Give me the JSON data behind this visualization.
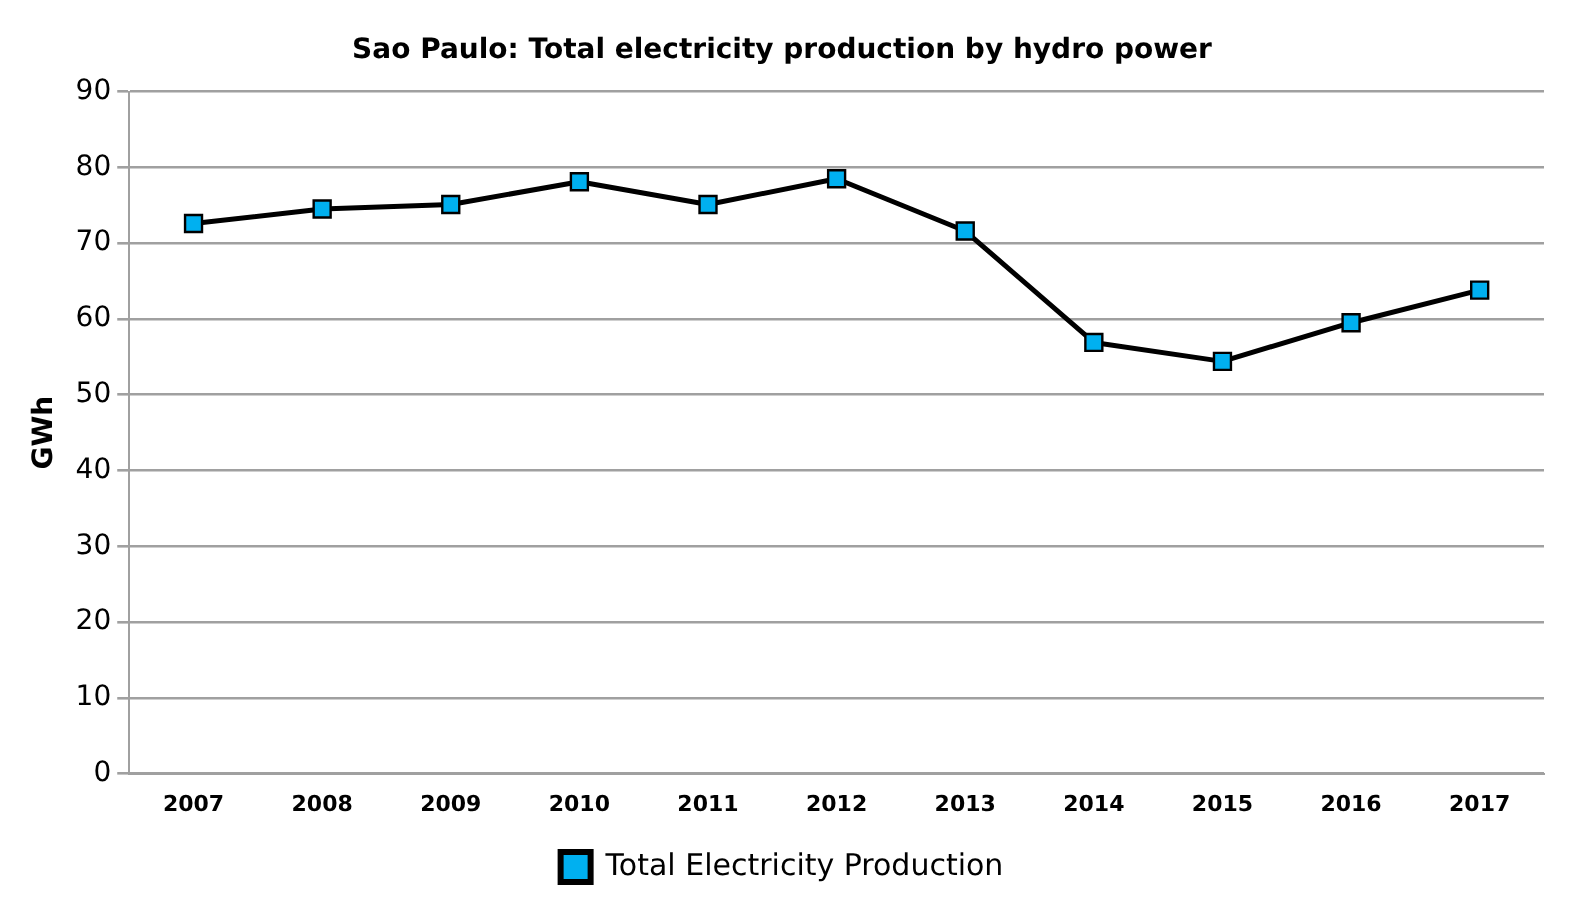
{
  "chart_data": {
    "type": "line",
    "title": "Sao Paulo: Total electricity production by hydro power",
    "ylabel": "GWh",
    "categories": [
      "2007",
      "2008",
      "2009",
      "2010",
      "2011",
      "2012",
      "2013",
      "2014",
      "2015",
      "2016",
      "2017"
    ],
    "series": [
      {
        "name": "Total Electricity Production",
        "color": "#00b0f0",
        "values": [
          72.6,
          74.5,
          75.1,
          78.1,
          75.1,
          78.5,
          71.6,
          56.9,
          54.4,
          59.5,
          63.8
        ]
      }
    ],
    "ylim": [
      0,
      90
    ],
    "yticks": [
      0,
      10,
      20,
      30,
      40,
      50,
      60,
      70,
      80,
      90
    ],
    "grid": "y",
    "legend": "bottom",
    "marker": "square",
    "line_style": "solid"
  }
}
